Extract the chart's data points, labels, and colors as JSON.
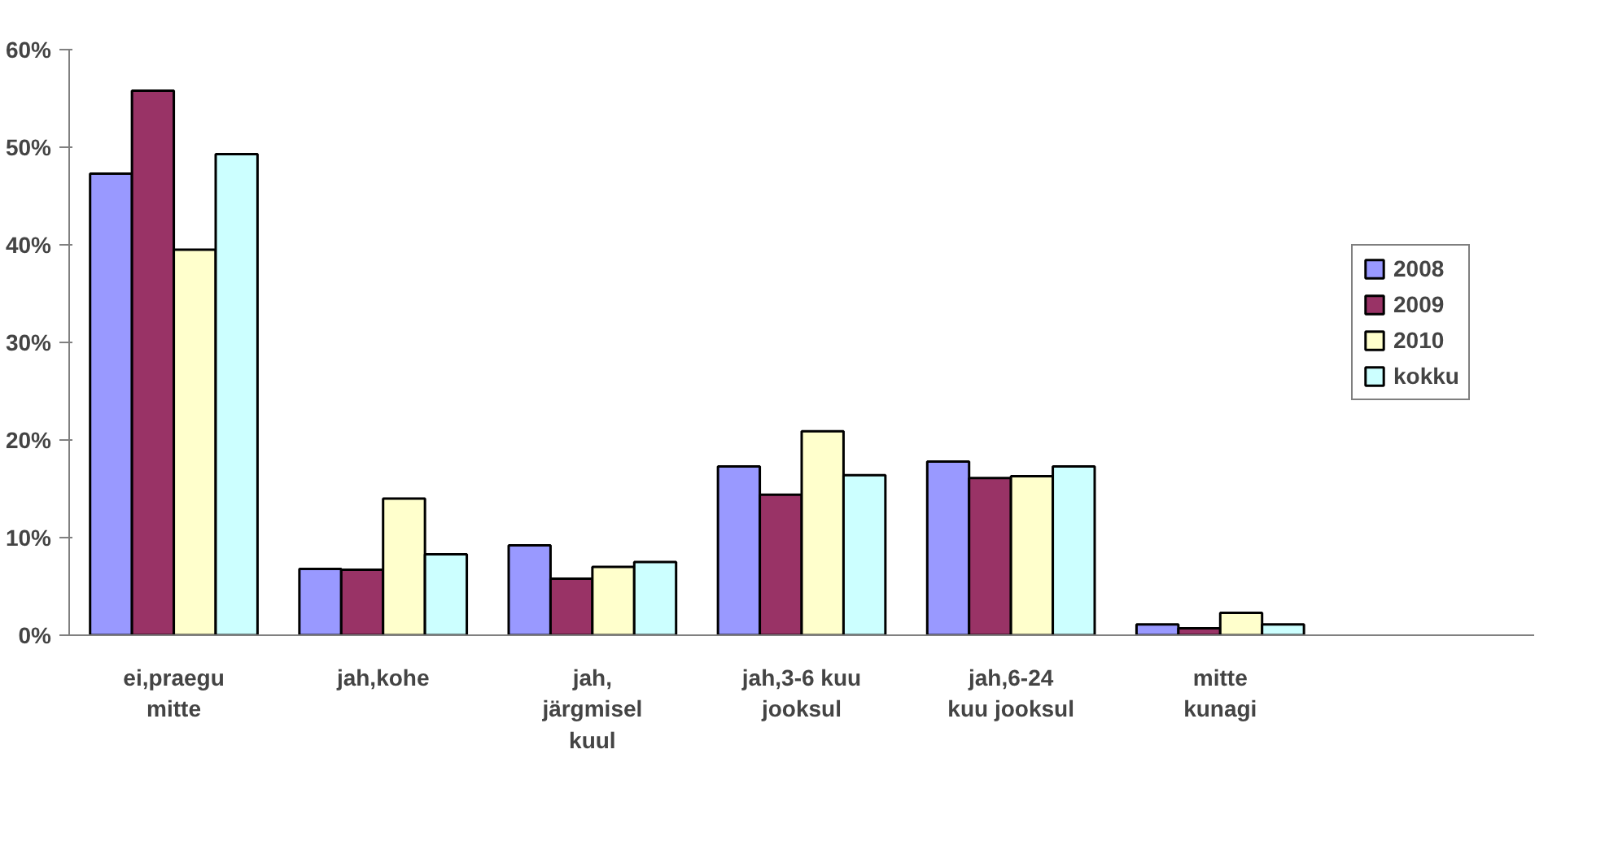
{
  "chart_data": {
    "type": "bar",
    "categories": [
      "ei,praegu mitte",
      "jah,kohe",
      "jah, järgmisel kuul",
      "jah,3-6 kuu jooksul",
      "jah,6-24 kuu jooksul",
      "mitte kunagi"
    ],
    "series": [
      {
        "name": "2008",
        "color": "#9999ff",
        "values": [
          47.3,
          6.8,
          9.2,
          17.3,
          17.8,
          1.1
        ]
      },
      {
        "name": "2009",
        "color": "#993366",
        "values": [
          55.8,
          6.7,
          5.8,
          14.4,
          16.1,
          0.7
        ]
      },
      {
        "name": "2010",
        "color": "#ffffcc",
        "values": [
          39.5,
          14.0,
          7.0,
          20.9,
          16.3,
          2.3
        ]
      },
      {
        "name": "kokku",
        "color": "#ccffff",
        "values": [
          49.3,
          8.3,
          7.5,
          16.4,
          17.3,
          1.1
        ]
      }
    ],
    "ylim": [
      0,
      60
    ],
    "yticks": [
      {
        "value": 0,
        "label": "0%"
      },
      {
        "value": 10,
        "label": "10%"
      },
      {
        "value": 20,
        "label": "20%"
      },
      {
        "value": 30,
        "label": "30%"
      },
      {
        "value": 40,
        "label": "40%"
      },
      {
        "value": 50,
        "label": "50%"
      },
      {
        "value": 60,
        "label": "60%"
      }
    ],
    "grid": false,
    "legend": "right"
  }
}
